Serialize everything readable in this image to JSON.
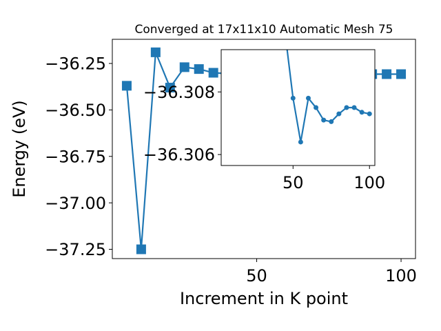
{
  "chart_data": [
    {
      "type": "line",
      "title": "Converged at 17x11x10 Automatic Mesh 75",
      "xlabel": "Increment in K point",
      "ylabel": "Energy (eV)",
      "xlim": [
        0.0,
        105.0
      ],
      "ylim": [
        -37.3,
        -36.12
      ],
      "xticks": [
        50,
        100
      ],
      "yticks": [
        -36.25,
        -36.5,
        -36.75,
        -37.0,
        -37.25
      ],
      "xtick_labels": [
        "50",
        "100"
      ],
      "ytick_labels": [
        "−36.25",
        "−36.50",
        "−36.75",
        "−37.00",
        "−37.25"
      ],
      "marker": "square",
      "color": "#1f77b4",
      "series": [
        {
          "x": [
            5,
            10,
            15,
            20,
            25,
            30,
            35,
            40,
            45,
            50,
            55,
            60,
            65,
            70,
            75,
            80,
            85,
            90,
            95,
            100
          ],
          "y": [
            -36.37,
            -37.25,
            -36.19,
            -36.38,
            -36.27,
            -36.28,
            -36.3,
            -36.305,
            -36.307,
            -36.308,
            -36.3065,
            -36.308,
            -36.3075,
            -36.307,
            -36.307,
            -36.3075,
            -36.3075,
            -36.3074,
            -36.3074,
            -36.3074
          ]
        }
      ]
    },
    {
      "type": "line",
      "title": "",
      "xlabel": "",
      "ylabel": "",
      "xlim": [
        3.0,
        103.5
      ],
      "ylim": [
        -36.30565,
        -36.30935
      ],
      "xticks": [
        50,
        100
      ],
      "yticks": [
        -36.308,
        -36.306
      ],
      "xtick_labels": [
        "50",
        "100"
      ],
      "ytick_labels": [
        "−36.308",
        "−36.306"
      ],
      "marker": "circle",
      "color": "#1f77b4",
      "series": [
        {
          "x": [
            45,
            50,
            55,
            60,
            65,
            70,
            75,
            80,
            85,
            90,
            95,
            100
          ],
          "y": [
            -36.3098,
            -36.3078,
            -36.3064,
            -36.3078,
            -36.3075,
            -36.3071,
            -36.30705,
            -36.3073,
            -36.3075,
            -36.3075,
            -36.30735,
            -36.3073
          ]
        }
      ]
    }
  ]
}
